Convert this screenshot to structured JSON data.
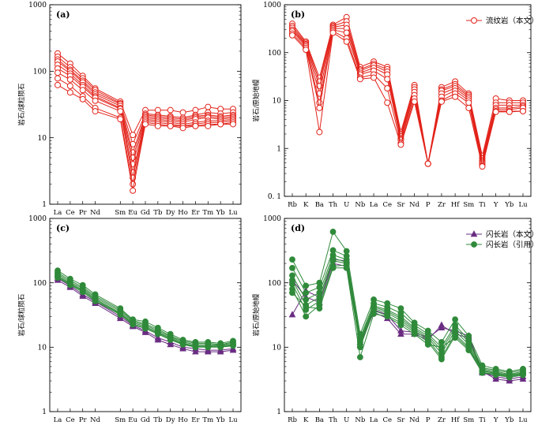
{
  "chart_data": [
    {
      "id": "a",
      "type": "line",
      "title": "(a)",
      "ylabel": "岩石/球粒陨石",
      "yscale": "log",
      "ylim": [
        1,
        1000
      ],
      "yticks": [
        "1",
        "10",
        "100",
        "1000"
      ],
      "categories": [
        "La",
        "Ce",
        "Pr",
        "Nd",
        "Sm",
        "Eu",
        "Gd",
        "Tb",
        "Dy",
        "Ho",
        "Er",
        "Tm",
        "Yb",
        "Lu"
      ],
      "cat_pos": [
        0,
        1,
        2,
        3,
        5,
        6,
        7,
        8,
        9,
        10,
        11,
        12,
        13,
        14
      ],
      "legend": [],
      "series": [
        {
          "name": "流纹岩（本文）",
          "color": "#e2231a",
          "marker": "circle-open",
          "values": [
            185,
            130,
            85,
            55,
            35,
            11,
            26,
            26,
            26,
            24,
            26,
            29,
            27,
            27
          ]
        },
        {
          "name": "流纹岩（本文）",
          "color": "#e2231a",
          "marker": "circle-open",
          "values": [
            165,
            115,
            78,
            52,
            33,
            8,
            23,
            22,
            21,
            20,
            22,
            24,
            23,
            24
          ]
        },
        {
          "name": "流纹岩（本文）",
          "color": "#e2231a",
          "marker": "circle-open",
          "values": [
            150,
            105,
            72,
            48,
            32,
            6,
            22,
            21,
            20,
            19,
            21,
            22,
            21,
            22
          ]
        },
        {
          "name": "流纹岩（本文）",
          "color": "#e2231a",
          "marker": "circle-open",
          "values": [
            140,
            100,
            68,
            45,
            30,
            5,
            21,
            20,
            19,
            18,
            20,
            21,
            20,
            21
          ]
        },
        {
          "name": "流纹岩（本文）",
          "color": "#e2231a",
          "marker": "circle-open",
          "values": [
            125,
            92,
            62,
            42,
            28,
            4,
            20,
            19,
            18,
            17,
            19,
            20,
            19,
            20
          ]
        },
        {
          "name": "流纹岩（本文）",
          "color": "#e2231a",
          "marker": "circle-open",
          "values": [
            110,
            85,
            58,
            40,
            27,
            3,
            19,
            18,
            17,
            16,
            17,
            18,
            18,
            19
          ]
        },
        {
          "name": "流纹岩（本文）",
          "color": "#e2231a",
          "marker": "circle-open",
          "values": [
            95,
            75,
            52,
            36,
            25,
            2.5,
            18,
            17,
            16,
            15,
            16,
            17,
            17,
            18
          ]
        },
        {
          "name": "流纹岩（本文）",
          "color": "#e2231a",
          "marker": "circle-open",
          "values": [
            78,
            60,
            42,
            28,
            20,
            2,
            17,
            16,
            15,
            15,
            15,
            16,
            16,
            17
          ]
        },
        {
          "name": "流纹岩（本文）",
          "color": "#e2231a",
          "marker": "circle-open",
          "values": [
            62,
            48,
            38,
            25,
            19,
            1.6,
            16,
            15,
            15,
            14,
            15,
            15,
            16,
            16
          ]
        }
      ]
    },
    {
      "id": "b",
      "type": "line",
      "title": "(b)",
      "ylabel": "岩石/原始地幔",
      "yscale": "log",
      "ylim": [
        0.1,
        1000
      ],
      "yticks": [
        "0. 1",
        "1",
        "10",
        "100",
        "1000"
      ],
      "categories": [
        "Rb",
        "K",
        "Ba",
        "Th",
        "U",
        "Nb",
        "La",
        "Ce",
        "Sr",
        "Nd",
        "P",
        "Zr",
        "Hf",
        "Sm",
        "Ti",
        "Y",
        "Yb",
        "Lu"
      ],
      "cat_pos": [
        0,
        1,
        2,
        3,
        4,
        5,
        6,
        7,
        8,
        9,
        10,
        11,
        12,
        13,
        14,
        15,
        16,
        17
      ],
      "legend": [
        "流纹岩（本文）"
      ],
      "series": [
        {
          "name": "流纹岩（本文）",
          "color": "#e2231a",
          "marker": "circle-open",
          "values": [
            400,
            170,
            30,
            380,
            550,
            50,
            65,
            50,
            2.2,
            21,
            0.48,
            19,
            25,
            14,
            0.7,
            11,
            10,
            10
          ]
        },
        {
          "name": "流纹岩（本文）",
          "color": "#e2231a",
          "marker": "circle-open",
          "values": [
            360,
            160,
            25,
            360,
            450,
            45,
            58,
            45,
            2.0,
            19,
            0.48,
            17,
            22,
            13,
            0.62,
            9,
            9,
            9
          ]
        },
        {
          "name": "流纹岩（本文）",
          "color": "#e2231a",
          "marker": "circle-open",
          "values": [
            330,
            150,
            20,
            340,
            380,
            42,
            54,
            40,
            1.8,
            17,
            0.48,
            16,
            20,
            12,
            0.56,
            8,
            8,
            8
          ]
        },
        {
          "name": "流纹岩（本文）",
          "color": "#e2231a",
          "marker": "circle-open",
          "values": [
            300,
            145,
            14,
            320,
            320,
            38,
            48,
            35,
            1.6,
            15,
            0.48,
            14,
            18,
            11,
            0.52,
            7,
            7,
            7.5
          ]
        },
        {
          "name": "流纹岩（本文）",
          "color": "#e2231a",
          "marker": "circle-open",
          "values": [
            280,
            135,
            9,
            300,
            260,
            35,
            42,
            28,
            1.5,
            13,
            0.48,
            12,
            16,
            10,
            0.48,
            6.5,
            6.5,
            7
          ]
        },
        {
          "name": "流纹岩（本文）",
          "color": "#e2231a",
          "marker": "circle-open",
          "values": [
            250,
            125,
            7,
            280,
            200,
            30,
            35,
            18,
            1.3,
            11,
            0.48,
            10,
            14,
            9,
            0.44,
            6,
            6,
            6
          ]
        },
        {
          "name": "流纹岩（本文）",
          "color": "#e2231a",
          "marker": "circle-open",
          "values": [
            230,
            115,
            2.2,
            260,
            170,
            28,
            30,
            9,
            1.2,
            9.5,
            0.48,
            9.5,
            12,
            7,
            0.42,
            5.8,
            5.8,
            6
          ]
        }
      ]
    },
    {
      "id": "c",
      "type": "line",
      "title": "(c)",
      "ylabel": "岩石/球粒陨石",
      "yscale": "log",
      "ylim": [
        1,
        1000
      ],
      "yticks": [
        "1",
        "10",
        "100",
        "1000"
      ],
      "categories": [
        "La",
        "Ce",
        "Pr",
        "Nd",
        "Sm",
        "Eu",
        "Gd",
        "Tb",
        "Dy",
        "Ho",
        "Er",
        "Tm",
        "Yb",
        "Lu"
      ],
      "cat_pos": [
        0,
        1,
        2,
        3,
        5,
        6,
        7,
        8,
        9,
        10,
        11,
        12,
        13,
        14
      ],
      "legend": [],
      "series": [
        {
          "name": "闪长岩（本文）",
          "color": "#6a2c82",
          "marker": "triangle",
          "values": [
            110,
            85,
            62,
            48,
            28,
            21,
            17,
            13,
            11,
            9.5,
            8.5,
            8.5,
            8.5,
            9
          ]
        },
        {
          "name": "闪长岩（本文）",
          "color": "#6a2c82",
          "marker": "triangle",
          "values": [
            118,
            90,
            66,
            51,
            30,
            22,
            18,
            14,
            12,
            10,
            9.5,
            9,
            9,
            9.5
          ]
        },
        {
          "name": "闪长岩（引用）",
          "color": "#2f8a3a",
          "marker": "circle",
          "values": [
            155,
            115,
            92,
            66,
            40,
            27,
            25,
            20,
            16,
            13,
            12,
            12,
            11.5,
            12.5
          ]
        },
        {
          "name": "闪长岩（引用）",
          "color": "#2f8a3a",
          "marker": "circle",
          "values": [
            145,
            108,
            86,
            62,
            38,
            26,
            23,
            19,
            15,
            12.5,
            11.5,
            11.5,
            11,
            12
          ]
        },
        {
          "name": "闪长岩（引用）",
          "color": "#2f8a3a",
          "marker": "circle",
          "values": [
            138,
            102,
            82,
            59,
            36,
            25,
            22,
            18,
            14.5,
            12,
            11,
            11,
            10.8,
            11.5
          ]
        },
        {
          "name": "闪长岩（引用）",
          "color": "#2f8a3a",
          "marker": "circle",
          "values": [
            130,
            98,
            78,
            56,
            34,
            24,
            21,
            17,
            14,
            11.5,
            10.5,
            10.5,
            10.5,
            11
          ]
        },
        {
          "name": "闪长岩（引用）",
          "color": "#2f8a3a",
          "marker": "circle",
          "values": [
            125,
            95,
            75,
            54,
            33,
            23,
            20,
            16.5,
            13.5,
            11.2,
            10.2,
            10.2,
            10.2,
            10.8
          ]
        },
        {
          "name": "闪长岩（引用）",
          "color": "#2f8a3a",
          "marker": "circle",
          "values": [
            120,
            92,
            72,
            52,
            32,
            22.5,
            19.5,
            16,
            13,
            11,
            10,
            10,
            10,
            10.5
          ]
        }
      ]
    },
    {
      "id": "d",
      "type": "line",
      "title": "(d)",
      "ylabel": "岩石/原始地幔",
      "yscale": "log",
      "ylim": [
        1,
        1000
      ],
      "yticks": [
        "1",
        "10",
        "100",
        "1000"
      ],
      "categories": [
        "Rb",
        "K",
        "Ba",
        "Th",
        "U",
        "Nb",
        "La",
        "Ce",
        "Sr",
        "Nd",
        "P",
        "Zr",
        "Hf",
        "Sm",
        "Ti",
        "Y",
        "Yb",
        "Lu"
      ],
      "cat_pos": [
        0,
        1,
        2,
        3,
        4,
        5,
        6,
        7,
        8,
        9,
        10,
        11,
        12,
        13,
        14,
        15,
        16,
        17
      ],
      "legend": [
        "闪长岩（本文）",
        "闪长岩（引用）"
      ],
      "series": [
        {
          "name": "闪长岩（本文）",
          "color": "#6a2c82",
          "marker": "triangle",
          "values": [
            32,
            75,
            60,
            230,
            220,
            12,
            38,
            32,
            18,
            17,
            14,
            20,
            18,
            15,
            4.2,
            3.2,
            3.0,
            3.2
          ]
        },
        {
          "name": "闪长岩（本文）",
          "color": "#6a2c82",
          "marker": "triangle",
          "values": [
            110,
            60,
            50,
            200,
            180,
            11,
            35,
            28,
            16,
            16,
            13,
            22,
            16,
            14,
            4.0,
            3.5,
            3.2,
            3.5
          ]
        },
        {
          "name": "闪长岩（引用）",
          "color": "#2f8a3a",
          "marker": "circle",
          "values": [
            230,
            90,
            100,
            620,
            310,
            16,
            55,
            48,
            40,
            24,
            18,
            12,
            27,
            15,
            5.2,
            4.6,
            4.2,
            4.6
          ]
        },
        {
          "name": "闪长岩（引用）",
          "color": "#2f8a3a",
          "marker": "circle",
          "values": [
            170,
            70,
            85,
            320,
            260,
            14,
            48,
            42,
            34,
            22,
            16,
            10,
            22,
            13,
            4.8,
            4.4,
            4.0,
            4.4
          ]
        },
        {
          "name": "闪长岩（引用）",
          "color": "#2f8a3a",
          "marker": "circle",
          "values": [
            130,
            55,
            70,
            270,
            230,
            13,
            44,
            38,
            30,
            20,
            15,
            9,
            20,
            12,
            4.6,
            4.2,
            3.8,
            4.2
          ]
        },
        {
          "name": "闪长岩（引用）",
          "color": "#2f8a3a",
          "marker": "circle",
          "values": [
            110,
            45,
            60,
            240,
            210,
            12,
            42,
            36,
            28,
            19,
            14,
            8,
            18,
            11,
            4.4,
            4.0,
            3.7,
            4.0
          ]
        },
        {
          "name": "闪长岩（引用）",
          "color": "#2f8a3a",
          "marker": "circle",
          "values": [
            95,
            38,
            52,
            220,
            200,
            11,
            40,
            34,
            26,
            18,
            13,
            7,
            16,
            10,
            4.3,
            3.9,
            3.6,
            3.9
          ]
        },
        {
          "name": "闪长岩（引用）",
          "color": "#2f8a3a",
          "marker": "circle",
          "values": [
            80,
            30,
            45,
            180,
            190,
            10,
            37,
            31,
            24,
            17,
            12,
            6.5,
            15,
            9.5,
            4.1,
            3.8,
            3.5,
            3.8
          ]
        },
        {
          "name": "闪长岩（引用）",
          "color": "#2f8a3a",
          "marker": "circle",
          "values": [
            70,
            42,
            40,
            170,
            170,
            7,
            33,
            30,
            22,
            16,
            11,
            10,
            14,
            9,
            4.0,
            3.7,
            3.4,
            3.7
          ]
        }
      ]
    }
  ]
}
